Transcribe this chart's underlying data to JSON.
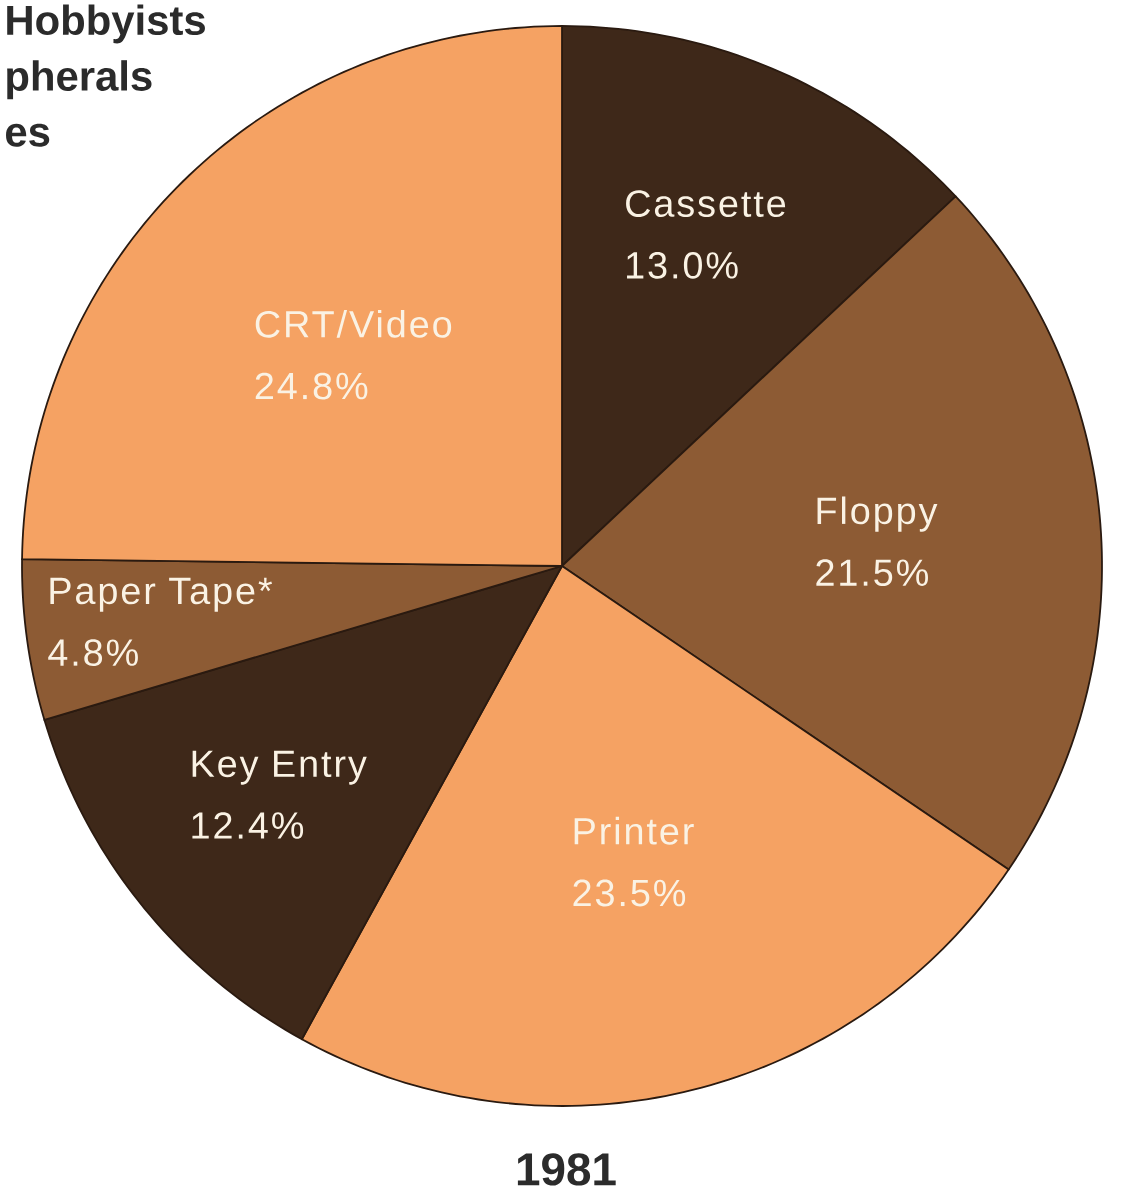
{
  "chart_data": {
    "type": "pie",
    "title": "Hobbyists pherals es",
    "categories": [
      "Cassette",
      "Floppy",
      "Printer",
      "Key Entry",
      "Paper Tape*",
      "CRT/Video"
    ],
    "values": [
      13.0,
      21.5,
      23.5,
      12.4,
      4.8,
      24.8
    ],
    "value_labels": [
      "13.0%",
      "21.5%",
      "23.5%",
      "12.4%",
      "4.8%",
      "24.8%"
    ],
    "colors": [
      "#3e2819",
      "#8d5b34",
      "#f5a263",
      "#3e2819",
      "#8d5b34",
      "#f5a263"
    ],
    "annotations": [
      "1981"
    ]
  }
}
